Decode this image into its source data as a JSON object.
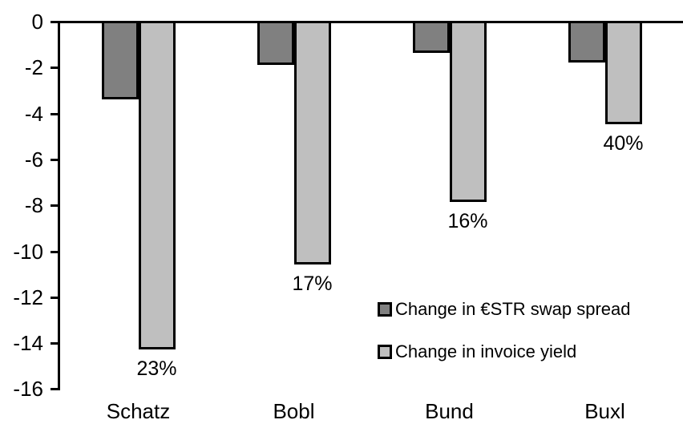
{
  "chart_data": {
    "type": "bar",
    "title": "",
    "xlabel": "",
    "ylabel": "",
    "categories": [
      "Schatz",
      "Bobl",
      "Bund",
      "Buxl"
    ],
    "series": [
      {
        "name": "Change in €STR swap spread",
        "color": "#808080",
        "values": [
          -3.3,
          -1.8,
          -1.3,
          -1.7
        ]
      },
      {
        "name": "Change in invoice yield",
        "color": "#BFBFBF",
        "values": [
          -14.2,
          -10.5,
          -7.8,
          -4.4
        ],
        "data_labels": [
          "23%",
          "17%",
          "16%",
          "40%"
        ]
      }
    ],
    "ylim": [
      -16,
      0
    ],
    "yticks": [
      0,
      -2,
      -4,
      -6,
      -8,
      -10,
      -12,
      -14,
      -16
    ],
    "grid": false,
    "legend_position": "inside-right",
    "axis_color": "#000000",
    "background_color": "#FFFFFF"
  }
}
